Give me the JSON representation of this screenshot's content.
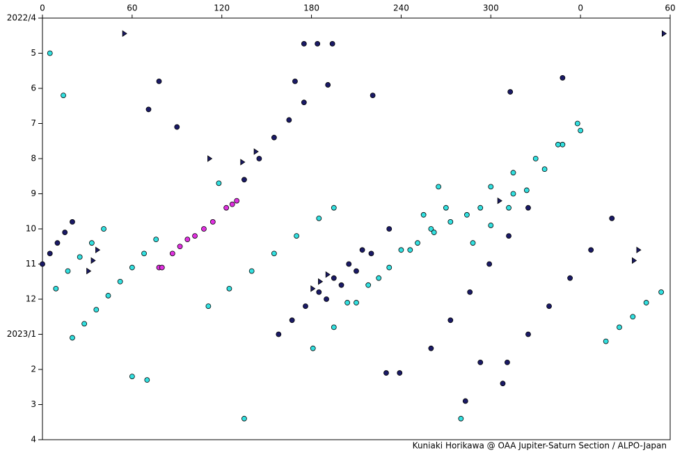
{
  "chart_data": {
    "type": "scatter",
    "footer": "Kuniaki Horikawa @ OAA Jupiter-Saturn Section / ALPO-Japan",
    "xlim": [
      0,
      420
    ],
    "xticks": [
      0,
      60,
      120,
      180,
      240,
      300,
      {
        "value": 360,
        "label": "0"
      },
      {
        "value": 420,
        "label": "60"
      }
    ],
    "ylim": [
      0,
      12
    ],
    "yticks": [
      {
        "value": 0,
        "label": "2022/4"
      },
      {
        "value": 1,
        "label": "5"
      },
      {
        "value": 2,
        "label": "6"
      },
      {
        "value": 3,
        "label": "7"
      },
      {
        "value": 4,
        "label": "8"
      },
      {
        "value": 5,
        "label": "9"
      },
      {
        "value": 6,
        "label": "10"
      },
      {
        "value": 7,
        "label": "11"
      },
      {
        "value": 8,
        "label": "12"
      },
      {
        "value": 9,
        "label": "2023/1"
      },
      {
        "value": 10,
        "label": "2"
      },
      {
        "value": 11,
        "label": "3"
      },
      {
        "value": 12,
        "label": "4"
      }
    ],
    "y_inverted": true,
    "series": [
      {
        "color": "#33e0e0",
        "marker": "circle",
        "x": [
          20,
          28,
          36,
          44,
          52,
          60,
          68,
          76,
          111,
          125,
          140,
          155,
          170,
          185,
          195,
          181,
          195,
          210,
          225,
          240,
          255,
          265,
          204,
          218,
          232,
          246,
          260,
          270,
          251,
          262,
          273,
          284,
          293,
          288,
          300,
          312,
          324,
          336,
          348,
          358,
          377,
          386,
          395,
          404,
          414,
          9,
          17,
          25,
          33,
          41,
          300,
          315,
          330,
          345,
          360,
          60,
          70,
          5,
          14,
          135,
          280,
          118,
          315
        ],
        "values": [
          9.1,
          8.7,
          8.3,
          7.9,
          7.5,
          7.1,
          6.7,
          6.3,
          8.2,
          7.7,
          7.2,
          6.7,
          6.2,
          5.7,
          5.4,
          9.4,
          8.8,
          8.1,
          7.4,
          6.6,
          5.6,
          4.8,
          8.1,
          7.6,
          7.1,
          6.6,
          6.0,
          5.4,
          6.4,
          6.1,
          5.8,
          5.6,
          5.4,
          6.4,
          5.9,
          5.4,
          4.9,
          4.3,
          3.6,
          3.0,
          9.2,
          8.8,
          8.5,
          8.1,
          7.8,
          7.7,
          7.2,
          6.8,
          6.4,
          6.0,
          4.8,
          4.4,
          4.0,
          3.6,
          3.2,
          10.2,
          10.3,
          1.0,
          2.2,
          11.4,
          11.4,
          4.7,
          5.0
        ]
      },
      {
        "color": "#1a1a66",
        "marker": "circle",
        "x": [
          0,
          5,
          10,
          15,
          20,
          158,
          167,
          176,
          185,
          195,
          205,
          214,
          190,
          200,
          210,
          220,
          232,
          260,
          273,
          286,
          299,
          312,
          325,
          311,
          325,
          339,
          353,
          367,
          381,
          135,
          145,
          155,
          165,
          175,
          191,
          78,
          71,
          90,
          169,
          221,
          313,
          348,
          230,
          239,
          283,
          293,
          308,
          175,
          184,
          194
        ],
        "values": [
          7.0,
          6.7,
          6.4,
          6.1,
          5.8,
          9.0,
          8.6,
          8.2,
          7.8,
          7.4,
          7.0,
          6.6,
          8.0,
          7.6,
          7.2,
          6.7,
          6.0,
          9.4,
          8.6,
          7.8,
          7.0,
          6.2,
          5.4,
          9.8,
          9.0,
          8.2,
          7.4,
          6.6,
          5.7,
          4.6,
          4.0,
          3.4,
          2.9,
          2.4,
          1.9,
          1.8,
          2.6,
          3.1,
          1.8,
          2.2,
          2.1,
          1.7,
          10.1,
          10.1,
          10.9,
          9.8,
          10.4,
          0.73,
          0.73,
          0.73
        ]
      },
      {
        "color": "#e030e0",
        "marker": "circle",
        "x": [
          78,
          80,
          87,
          92,
          97,
          102,
          108,
          114,
          123,
          127,
          130
        ],
        "values": [
          7.1,
          7.1,
          6.7,
          6.5,
          6.3,
          6.2,
          6.0,
          5.8,
          5.4,
          5.3,
          5.2
        ]
      },
      {
        "color": "#1a1a66",
        "marker": "triangle",
        "x": [
          55,
          416,
          31,
          34,
          37,
          112,
          134,
          143,
          181,
          186,
          191,
          306,
          396,
          399
        ],
        "values": [
          0.44,
          0.44,
          7.2,
          6.9,
          6.6,
          4.0,
          4.1,
          3.8,
          7.7,
          7.5,
          7.3,
          5.2,
          6.9,
          6.6
        ]
      }
    ]
  }
}
